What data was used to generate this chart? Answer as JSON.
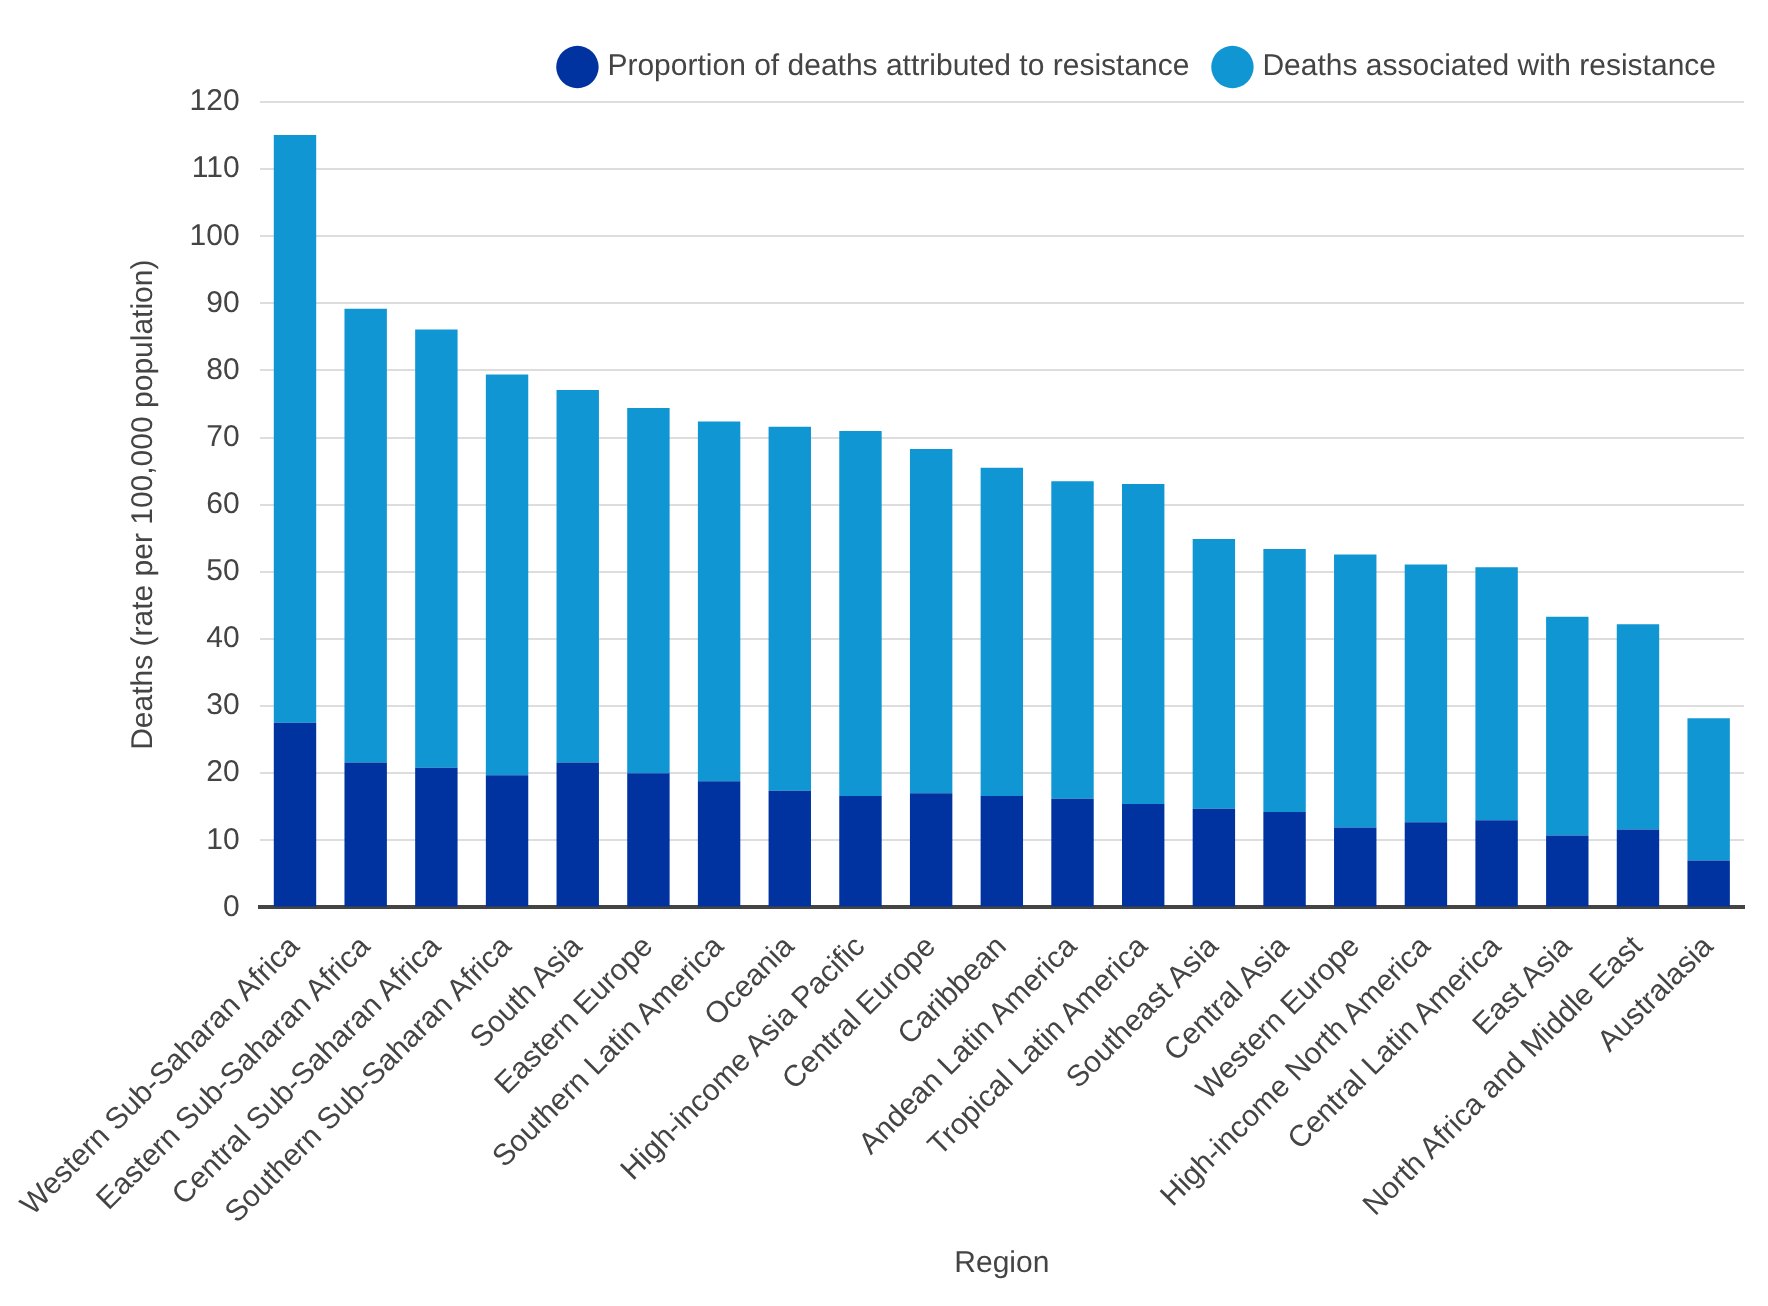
{
  "chart_data": {
    "type": "bar",
    "stacked": true,
    "xlabel": "Region",
    "ylabel": "Deaths (rate per 100,000 population)",
    "categories": [
      "Western Sub-Saharan Africa",
      "Eastern Sub-Saharan Africa",
      "Central Sub-Saharan Africa",
      "Southern Sub-Saharan Africa",
      "South Asia",
      "Eastern Europe",
      "Southern Latin America",
      "Oceania",
      "High-income Asia Pacific",
      "Central Europe",
      "Caribbean",
      "Andean Latin America",
      "Tropical Latin America",
      "Southeast Asia",
      "Central Asia",
      "Western Europe",
      "High-income North America",
      "Central Latin America",
      "East Asia",
      "North Africa and Middle East",
      "Australasia"
    ],
    "series": [
      {
        "name": "Proportion of deaths attributed to resistance",
        "color": "#0033a0",
        "values": [
          27.5,
          21.6,
          20.8,
          19.7,
          21.6,
          20.0,
          18.8,
          17.4,
          16.6,
          17.0,
          16.6,
          16.2,
          15.4,
          14.7,
          14.2,
          11.9,
          12.7,
          13.0,
          10.7,
          11.6,
          7.0
        ]
      },
      {
        "name": "Deaths associated with resistance",
        "color": "#1196d4",
        "values": [
          87.6,
          67.6,
          65.3,
          59.7,
          55.5,
          54.4,
          53.6,
          54.2,
          54.4,
          51.3,
          48.9,
          47.3,
          47.7,
          40.2,
          39.2,
          40.7,
          38.4,
          37.7,
          32.6,
          30.6,
          21.2
        ]
      }
    ],
    "ylim": [
      0,
      120
    ],
    "yticks": [
      0,
      10,
      20,
      30,
      40,
      50,
      60,
      70,
      80,
      90,
      100,
      110,
      120
    ],
    "grid": "y",
    "legend": "top right"
  }
}
